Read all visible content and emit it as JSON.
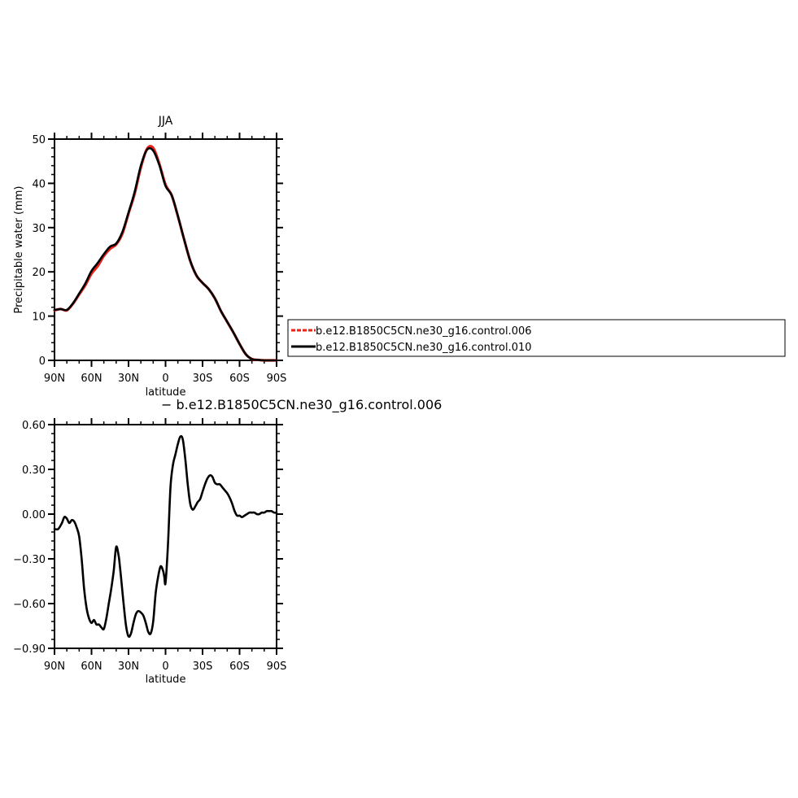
{
  "chart_data": [
    {
      "type": "line",
      "title": "JJA",
      "xlabel": "latitude",
      "ylabel": "Precipitable water (mm)",
      "xlim": [
        90,
        -90
      ],
      "ylim": [
        0,
        50
      ],
      "x_ticks": [
        {
          "value": 90,
          "label": "90N"
        },
        {
          "value": 60,
          "label": "60N"
        },
        {
          "value": 30,
          "label": "30N"
        },
        {
          "value": 0,
          "label": "0"
        },
        {
          "value": -30,
          "label": "30S"
        },
        {
          "value": -60,
          "label": "60S"
        },
        {
          "value": -90,
          "label": "90S"
        }
      ],
      "y_ticks": [
        {
          "value": 0,
          "label": "0"
        },
        {
          "value": 10,
          "label": "10"
        },
        {
          "value": 20,
          "label": "20"
        },
        {
          "value": 30,
          "label": "30"
        },
        {
          "value": 40,
          "label": "40"
        },
        {
          "value": 50,
          "label": "50"
        }
      ],
      "legend_position": "right",
      "series": [
        {
          "name": "b.e12.B1850C5CN.ne30_g16.control.006",
          "color": "#e8231b",
          "dash": "dashed",
          "x": [
            90,
            85,
            80,
            75,
            70,
            65,
            60,
            55,
            50,
            45,
            40,
            35,
            30,
            25,
            20,
            15,
            10,
            5,
            0,
            -5,
            -10,
            -15,
            -20,
            -25,
            -30,
            -35,
            -40,
            -45,
            -50,
            -55,
            -60,
            -65,
            -70,
            -75,
            -80,
            -85,
            -90
          ],
          "y": [
            11.3,
            11.6,
            11.3,
            12.8,
            14.9,
            17.0,
            19.6,
            21.3,
            23.6,
            25.2,
            26.2,
            28.6,
            33.2,
            37.7,
            43.6,
            47.8,
            48.0,
            44.4,
            39.7,
            37.3,
            32.6,
            27.4,
            22.5,
            19.2,
            17.5,
            16.1,
            14.0,
            11.1,
            8.7,
            6.3,
            3.7,
            1.4,
            0.3,
            0.1,
            0.0,
            0.0,
            0.0
          ]
        },
        {
          "name": "b.e12.B1850C5CN.ne30_g16.control.010",
          "color": "#000000",
          "dash": "solid",
          "x": [
            90,
            85,
            80,
            75,
            70,
            65,
            60,
            55,
            50,
            45,
            40,
            35,
            30,
            25,
            20,
            15,
            10,
            5,
            0,
            -5,
            -10,
            -15,
            -20,
            -25,
            -30,
            -35,
            -40,
            -45,
            -50,
            -55,
            -60,
            -65,
            -70,
            -75,
            -80,
            -85,
            -90
          ],
          "y": [
            11.4,
            11.6,
            11.4,
            12.9,
            15.1,
            17.4,
            20.2,
            22.0,
            24.0,
            25.7,
            26.4,
            29.0,
            33.4,
            38.1,
            44.0,
            47.6,
            47.4,
            44.1,
            39.4,
            37.3,
            32.6,
            27.4,
            22.5,
            19.2,
            17.5,
            16.1,
            14.0,
            11.1,
            8.7,
            6.3,
            3.7,
            1.4,
            0.3,
            0.1,
            0.0,
            0.0,
            0.0
          ]
        }
      ]
    },
    {
      "type": "line",
      "title": "− b.e12.B1850C5CN.ne30_g16.control.006",
      "xlabel": "latitude",
      "ylabel": "",
      "xlim": [
        90,
        -90
      ],
      "ylim": [
        -0.9,
        0.6
      ],
      "x_ticks": [
        {
          "value": 90,
          "label": "90N"
        },
        {
          "value": 60,
          "label": "60N"
        },
        {
          "value": 30,
          "label": "30N"
        },
        {
          "value": 0,
          "label": "0"
        },
        {
          "value": -30,
          "label": "30S"
        },
        {
          "value": -60,
          "label": "60S"
        },
        {
          "value": -90,
          "label": "90S"
        }
      ],
      "y_ticks": [
        {
          "value": 0.6,
          "label": "0.60"
        },
        {
          "value": 0.3,
          "label": "0.30"
        },
        {
          "value": 0.0,
          "label": "0.00"
        },
        {
          "value": -0.3,
          "label": "−0.30"
        },
        {
          "value": -0.6,
          "label": "−0.60"
        },
        {
          "value": -0.9,
          "label": "−0.90"
        }
      ],
      "series": [
        {
          "color": "#000000",
          "dash": "solid",
          "x": [
            90,
            87,
            84,
            82,
            80,
            78,
            76,
            74,
            72,
            70,
            68,
            66,
            64,
            62,
            60,
            58,
            56,
            54,
            52,
            50,
            48,
            46,
            44,
            42,
            40,
            38,
            37,
            36,
            34,
            32,
            30,
            28,
            26,
            24,
            22,
            20,
            18,
            16,
            14,
            12,
            10,
            8,
            6,
            4,
            2,
            1,
            0,
            -2,
            -4,
            -6,
            -8,
            -10,
            -12,
            -14,
            -16,
            -18,
            -20,
            -22,
            -24,
            -26,
            -28,
            -30,
            -32,
            -34,
            -36,
            -38,
            -40,
            -42,
            -44,
            -46,
            -48,
            -50,
            -52,
            -54,
            -56,
            -58,
            -60,
            -62,
            -64,
            -66,
            -68,
            -70,
            -72,
            -74,
            -76,
            -78,
            -80,
            -82,
            -84,
            -86,
            -88,
            -90
          ],
          "y": [
            -0.1,
            -0.1,
            -0.06,
            -0.02,
            -0.03,
            -0.06,
            -0.04,
            -0.05,
            -0.09,
            -0.15,
            -0.3,
            -0.5,
            -0.63,
            -0.7,
            -0.73,
            -0.71,
            -0.74,
            -0.74,
            -0.76,
            -0.77,
            -0.7,
            -0.6,
            -0.5,
            -0.38,
            -0.22,
            -0.28,
            -0.35,
            -0.43,
            -0.6,
            -0.75,
            -0.82,
            -0.8,
            -0.73,
            -0.67,
            -0.65,
            -0.66,
            -0.68,
            -0.73,
            -0.79,
            -0.8,
            -0.72,
            -0.53,
            -0.42,
            -0.35,
            -0.38,
            -0.42,
            -0.46,
            -0.2,
            0.18,
            0.33,
            0.4,
            0.47,
            0.52,
            0.5,
            0.37,
            0.2,
            0.07,
            0.03,
            0.05,
            0.08,
            0.1,
            0.15,
            0.2,
            0.24,
            0.26,
            0.25,
            0.21,
            0.2,
            0.2,
            0.18,
            0.16,
            0.14,
            0.11,
            0.07,
            0.02,
            -0.01,
            -0.01,
            -0.02,
            -0.01,
            0.0,
            0.01,
            0.01,
            0.01,
            0.0,
            0.0,
            0.01,
            0.01,
            0.02,
            0.02,
            0.02,
            0.01,
            0.01
          ]
        }
      ]
    }
  ]
}
